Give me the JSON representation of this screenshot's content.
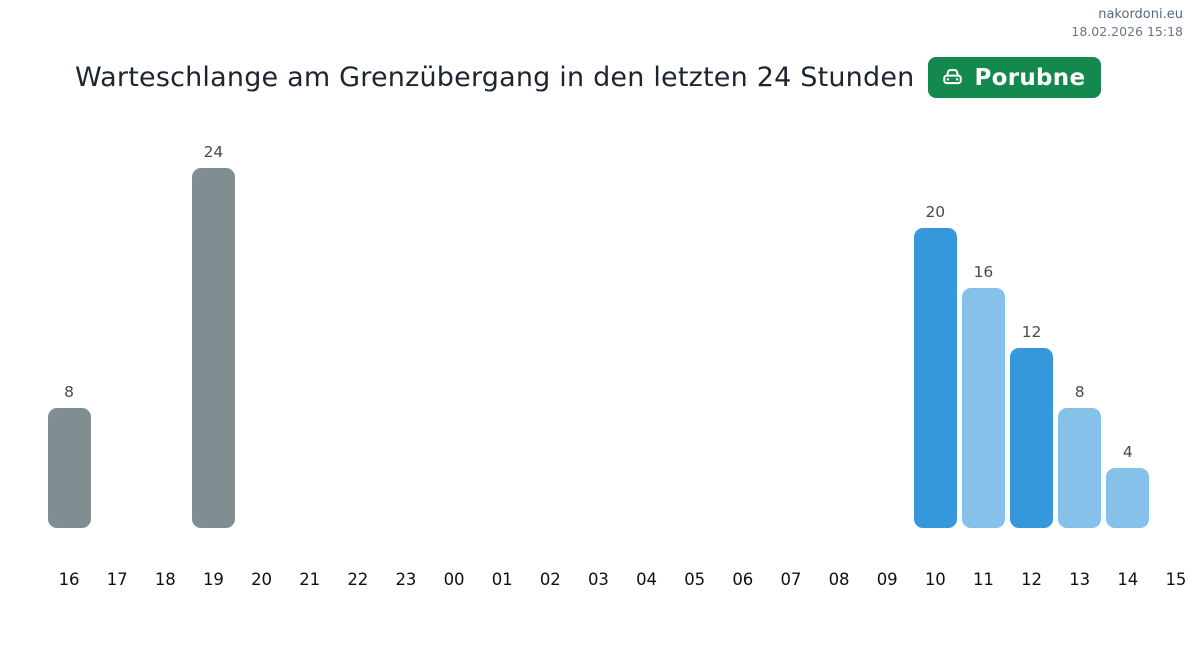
{
  "watermark": {
    "site": "nakordoni.eu",
    "timestamp": "18.02.2026 15:18"
  },
  "header": {
    "title": "Warteschlange am Grenzübergang in den letzten 24 Stunden",
    "badge_label": "Porubne"
  },
  "colors": {
    "gray": "#7f8e90",
    "blue": "#3498db",
    "lightblue": "#85c1e9",
    "badge_green": "#13894d",
    "value_label": "#4a4a4a",
    "axis_label": "#101010"
  },
  "chart_data": {
    "type": "bar",
    "title": "Warteschlange am Grenzübergang in den letzten 24 Stunden",
    "subtitle_badge": "Porubne",
    "categories": [
      "16",
      "17",
      "18",
      "19",
      "20",
      "21",
      "22",
      "23",
      "00",
      "01",
      "02",
      "03",
      "04",
      "05",
      "06",
      "07",
      "08",
      "09",
      "10",
      "11",
      "12",
      "13",
      "14",
      "15"
    ],
    "values": [
      8,
      0,
      0,
      24,
      0,
      0,
      0,
      0,
      0,
      0,
      0,
      0,
      0,
      0,
      0,
      0,
      0,
      0,
      20,
      16,
      12,
      8,
      4,
      0
    ],
    "bar_colors": [
      "gray",
      null,
      null,
      "gray",
      null,
      null,
      null,
      null,
      null,
      null,
      null,
      null,
      null,
      null,
      null,
      null,
      null,
      null,
      "blue",
      "lightblue",
      "blue",
      "lightblue",
      "lightblue",
      null
    ],
    "value_labels": [
      8,
      null,
      null,
      24,
      null,
      null,
      null,
      null,
      null,
      null,
      null,
      null,
      null,
      null,
      null,
      null,
      null,
      null,
      20,
      16,
      12,
      8,
      4,
      null
    ],
    "xlabel": "",
    "ylabel": "",
    "ylim": [
      0,
      24
    ],
    "grid": false,
    "legend": false,
    "bar_corner_radius": 9
  }
}
